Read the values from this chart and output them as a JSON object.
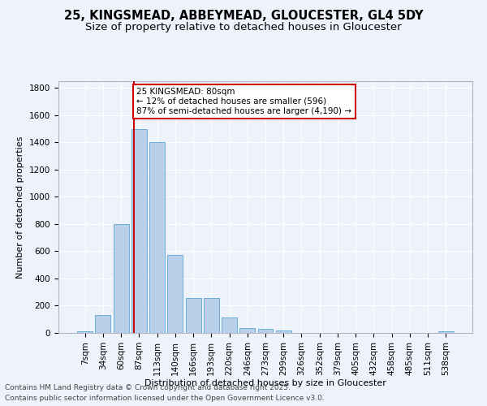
{
  "title_line1": "25, KINGSMEAD, ABBEYMEAD, GLOUCESTER, GL4 5DY",
  "title_line2": "Size of property relative to detached houses in Gloucester",
  "xlabel": "Distribution of detached houses by size in Gloucester",
  "ylabel": "Number of detached properties",
  "categories": [
    "7sqm",
    "34sqm",
    "60sqm",
    "87sqm",
    "113sqm",
    "140sqm",
    "166sqm",
    "193sqm",
    "220sqm",
    "246sqm",
    "273sqm",
    "299sqm",
    "326sqm",
    "352sqm",
    "379sqm",
    "405sqm",
    "432sqm",
    "458sqm",
    "485sqm",
    "511sqm",
    "538sqm"
  ],
  "values": [
    10,
    130,
    800,
    1500,
    1400,
    575,
    255,
    255,
    115,
    35,
    30,
    20,
    0,
    0,
    0,
    0,
    0,
    0,
    0,
    0,
    10
  ],
  "bar_color": "#b8d0ea",
  "bar_edge_color": "#6aaed6",
  "vline_color": "#cc0000",
  "vline_x": 2.72,
  "annotation_text": "25 KINGSMEAD: 80sqm\n← 12% of detached houses are smaller (596)\n87% of semi-detached houses are larger (4,190) →",
  "annotation_box_facecolor": "#ffffff",
  "annotation_box_edgecolor": "#cc0000",
  "ylim": [
    0,
    1850
  ],
  "yticks": [
    0,
    200,
    400,
    600,
    800,
    1000,
    1200,
    1400,
    1600,
    1800
  ],
  "background_color": "#eef2fb",
  "grid_color": "#ffffff",
  "footer_line1": "Contains HM Land Registry data © Crown copyright and database right 2025.",
  "footer_line2": "Contains public sector information licensed under the Open Government Licence v3.0.",
  "title_fontsize": 10.5,
  "subtitle_fontsize": 9.5,
  "axis_label_fontsize": 8,
  "tick_fontsize": 7.5,
  "annotation_fontsize": 7.5,
  "footer_fontsize": 6.5
}
